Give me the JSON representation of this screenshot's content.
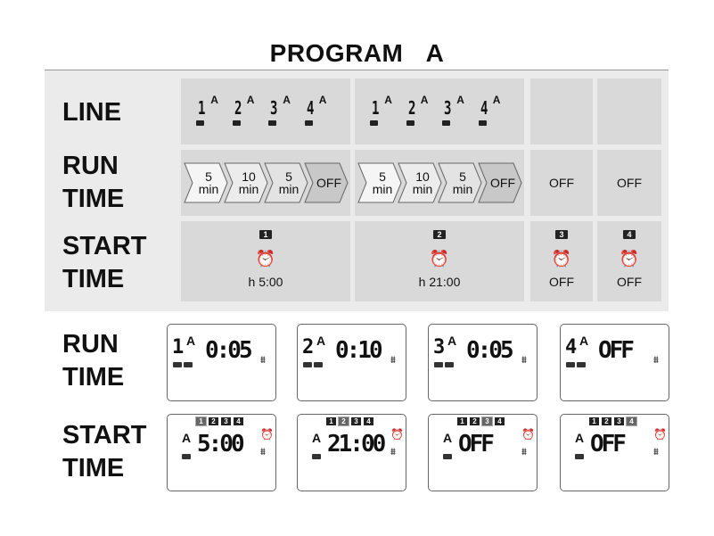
{
  "title": "PROGRAM   A",
  "row_labels": {
    "line": "LINE",
    "run_time": [
      "RUN",
      "TIME"
    ],
    "start_time": [
      "START",
      "TIME"
    ]
  },
  "lines": [
    {
      "num": "1",
      "letter": "A"
    },
    {
      "num": "2",
      "letter": "A"
    },
    {
      "num": "3",
      "letter": "A"
    },
    {
      "num": "4",
      "letter": "A"
    }
  ],
  "run_time_steps": [
    {
      "value": "5",
      "unit": "min",
      "color": "#f5f5f5"
    },
    {
      "value": "10",
      "unit": "min",
      "color": "#ececec"
    },
    {
      "value": "5",
      "unit": "min",
      "color": "#e3e3e3"
    },
    {
      "value": "OFF",
      "unit": "",
      "color": "#c8c8c8"
    }
  ],
  "off_label": "OFF",
  "start_times": [
    {
      "badge": "1",
      "time": "h 5:00"
    },
    {
      "badge": "2",
      "time": "h 21:00"
    },
    {
      "badge": "3",
      "time": "OFF"
    },
    {
      "badge": "4",
      "time": "OFF"
    }
  ],
  "lcd_run": [
    {
      "line": "1",
      "letter": "A",
      "value": "0:05"
    },
    {
      "line": "2",
      "letter": "A",
      "value": "0:10"
    },
    {
      "line": "3",
      "letter": "A",
      "value": "0:05"
    },
    {
      "line": "4",
      "letter": "A",
      "value": "OFF"
    }
  ],
  "lcd_start": [
    {
      "letter": "A",
      "value": "5:00",
      "active": "1"
    },
    {
      "letter": "A",
      "value": "21:00",
      "active": "2"
    },
    {
      "letter": "A",
      "value": "OFF",
      "active": "3"
    },
    {
      "letter": "A",
      "value": "OFF",
      "active": "4"
    }
  ],
  "lcd_badges": [
    "1",
    "2",
    "3",
    "4"
  ]
}
